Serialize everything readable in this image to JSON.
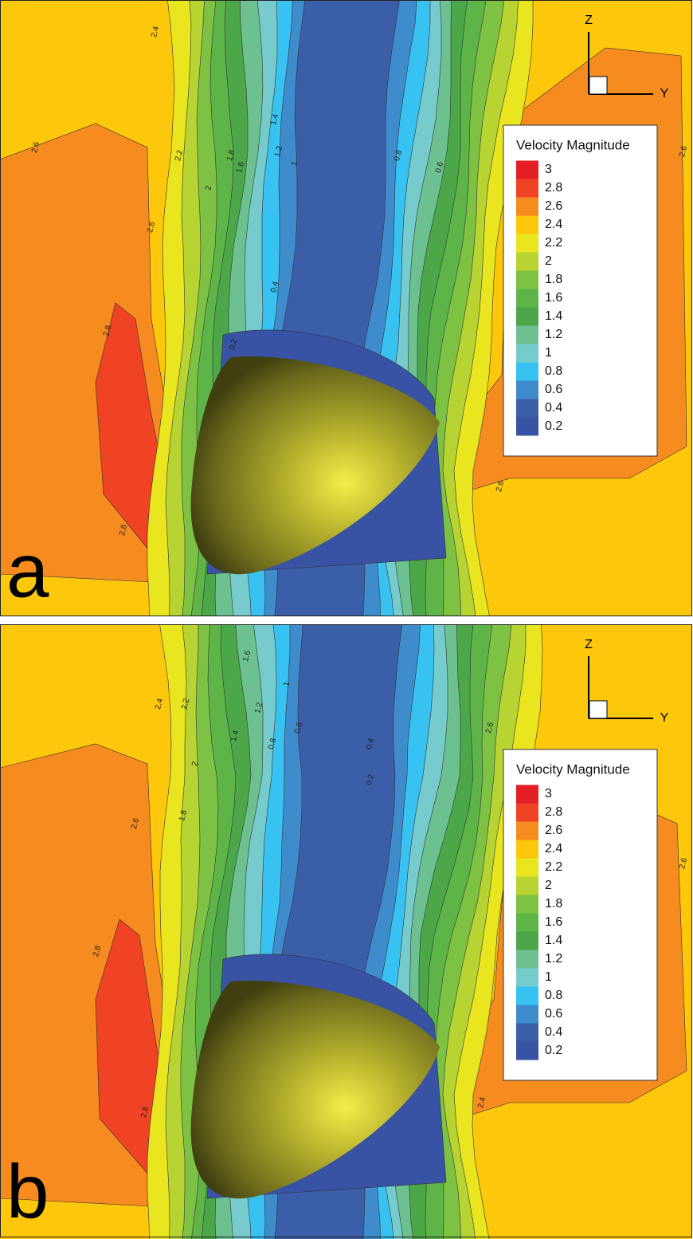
{
  "panels": [
    {
      "letter": "a",
      "legend_title": "Velocity Magnitude",
      "legend_levels": [
        3,
        2.8,
        2.6,
        2.4,
        2.2,
        2,
        1.8,
        1.6,
        1.4,
        1.2,
        1,
        0.8,
        0.6,
        0.4,
        0.2
      ],
      "legend_colors": [
        "#e31e24",
        "#ef4323",
        "#f68b1f",
        "#fdc70c",
        "#e9e51f",
        "#b7d433",
        "#7dc242",
        "#5eb547",
        "#4ca749",
        "#6dc190",
        "#76cbcc",
        "#37c2f1",
        "#3e8ccc",
        "#3b5ea9",
        "#3853a3"
      ],
      "axis_labels": {
        "z": "Z",
        "y": "Y"
      },
      "contour_labels": [
        2.4,
        2.6,
        2.8,
        2.6,
        2.2,
        2,
        1.8,
        1.6,
        1.4,
        1.2,
        1,
        0.8,
        0.6,
        0.4,
        0.2,
        2.6,
        2.8,
        2.6
      ]
    },
    {
      "letter": "b",
      "legend_title": "Velocity Magnitude",
      "legend_levels": [
        3,
        2.8,
        2.6,
        2.4,
        2.2,
        2,
        1.8,
        1.6,
        1.4,
        1.2,
        1,
        0.8,
        0.6,
        0.4,
        0.2
      ],
      "legend_colors": [
        "#e31e24",
        "#ef4323",
        "#f68b1f",
        "#fdc70c",
        "#e9e51f",
        "#b7d433",
        "#7dc242",
        "#5eb547",
        "#4ca749",
        "#6dc190",
        "#76cbcc",
        "#37c2f1",
        "#3e8ccc",
        "#3b5ea9",
        "#3853a3"
      ],
      "axis_labels": {
        "z": "Z",
        "y": "Y"
      },
      "contour_labels": [
        2.4,
        2.2,
        2,
        1.8,
        1.6,
        1.4,
        1.2,
        1,
        0.8,
        0.6,
        0.4,
        0.2,
        2.6,
        2.8,
        2.6,
        2.6,
        2.8,
        2.4
      ]
    }
  ]
}
